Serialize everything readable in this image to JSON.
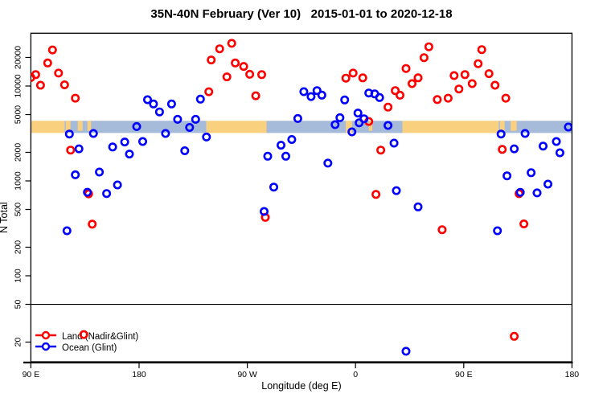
{
  "title": "35N-40N February (Ver 10)   2015-01-01 to 2020-12-18",
  "legend": {
    "items": [
      {
        "label": "Land (Nadir&Glint)",
        "series": "land",
        "color": "#ff0000"
      },
      {
        "label": "Ocean (Glint)",
        "series": "ocean",
        "color": "#0000ff"
      }
    ]
  },
  "chart_data": {
    "type": "scatter",
    "title": "35N-40N February (Ver 10)   2015-01-01 to 2020-12-18",
    "x_axis": {
      "label": "Longitude (deg E)",
      "range_deg": [
        90,
        540
      ],
      "tick_degrees": [
        90,
        180,
        270,
        360,
        450,
        540
      ],
      "tick_labels": [
        "90 E",
        "180",
        "90 W",
        "0",
        "90 E",
        "180"
      ]
    },
    "y_axis": {
      "label": "N Total",
      "scale": "log10",
      "ticks": [
        20,
        50,
        100,
        200,
        500,
        1000,
        2000,
        5000,
        10000,
        20000
      ],
      "range": [
        14,
        32000
      ]
    },
    "reference_line_value": 50,
    "surface_band": {
      "description": "land/ocean strip along latitude band",
      "land_color": "#f8d07e",
      "ocean_color": "#a6bad9",
      "value_range": [
        3200,
        4300
      ],
      "segments": [
        {
          "from_deg": 90,
          "to_deg": 118,
          "type": "land"
        },
        {
          "from_deg": 118,
          "to_deg": 236,
          "type": "ocean"
        },
        {
          "from_deg": 236,
          "to_deg": 286,
          "type": "land"
        },
        {
          "from_deg": 286,
          "to_deg": 352,
          "type": "ocean"
        },
        {
          "from_deg": 352,
          "to_deg": 357,
          "type": "land"
        },
        {
          "from_deg": 357,
          "to_deg": 399,
          "type": "ocean"
        },
        {
          "from_deg": 399,
          "to_deg": 479,
          "type": "land"
        },
        {
          "from_deg": 479,
          "to_deg": 540,
          "type": "ocean"
        }
      ],
      "land_patches_deg": [
        [
          119,
          123
        ],
        [
          129,
          133
        ],
        [
          137,
          140
        ],
        [
          371,
          374
        ],
        [
          480,
          484
        ],
        [
          489,
          494
        ]
      ]
    },
    "series": [
      {
        "name": "Land (Nadir&Glint)",
        "color": "#ff0000",
        "points_deg_n": [
          [
            108,
            24000
          ],
          [
            104,
            17500
          ],
          [
            94,
            13200
          ],
          [
            90,
            12300
          ],
          [
            113,
            13700
          ],
          [
            98,
            10200
          ],
          [
            118,
            10300
          ],
          [
            127,
            7450
          ],
          [
            123,
            2110
          ],
          [
            138,
            730
          ],
          [
            247,
            24700
          ],
          [
            257,
            28200
          ],
          [
            240,
            18800
          ],
          [
            260,
            17500
          ],
          [
            267,
            16100
          ],
          [
            272,
            13300
          ],
          [
            282,
            13200
          ],
          [
            253,
            12500
          ],
          [
            238,
            8700
          ],
          [
            277,
            7900
          ],
          [
            352,
            12100
          ],
          [
            358,
            13700
          ],
          [
            366,
            12200
          ],
          [
            371,
            4230
          ],
          [
            381,
            2110
          ],
          [
            377,
            720
          ],
          [
            387,
            6000
          ],
          [
            393,
            8950
          ],
          [
            397,
            8000
          ],
          [
            402,
            15300
          ],
          [
            407,
            10600
          ],
          [
            412,
            12200
          ],
          [
            417,
            19900
          ],
          [
            421,
            25900
          ],
          [
            428,
            7200
          ],
          [
            432,
            306
          ],
          [
            437,
            7450
          ],
          [
            442,
            12900
          ],
          [
            446,
            9300
          ],
          [
            451,
            13200
          ],
          [
            457,
            10600
          ],
          [
            462,
            17200
          ],
          [
            465,
            24200
          ],
          [
            471,
            13500
          ],
          [
            476,
            10200
          ],
          [
            482,
            2150
          ],
          [
            485,
            7450
          ],
          [
            492,
            23
          ],
          [
            496,
            735
          ],
          [
            500,
            352
          ],
          [
            141,
            350
          ],
          [
            285,
            413
          ],
          [
            134,
            24
          ]
        ]
      },
      {
        "name": "Ocean (Glint)",
        "color": "#0000ff",
        "points_deg_n": [
          [
            120,
            298
          ],
          [
            122,
            3120
          ],
          [
            127,
            1160
          ],
          [
            130,
            2180
          ],
          [
            137,
            760
          ],
          [
            142,
            3160
          ],
          [
            147,
            1240
          ],
          [
            153,
            736
          ],
          [
            158,
            2280
          ],
          [
            162,
            907
          ],
          [
            168,
            2570
          ],
          [
            172,
            1920
          ],
          [
            178,
            3740
          ],
          [
            183,
            2600
          ],
          [
            187,
            7180
          ],
          [
            192,
            6470
          ],
          [
            197,
            5330
          ],
          [
            202,
            3160
          ],
          [
            207,
            6470
          ],
          [
            212,
            4460
          ],
          [
            218,
            2080
          ],
          [
            222,
            3660
          ],
          [
            227,
            4460
          ],
          [
            231,
            7280
          ],
          [
            236,
            2900
          ],
          [
            284,
            476
          ],
          [
            287,
            1820
          ],
          [
            292,
            860
          ],
          [
            298,
            2380
          ],
          [
            302,
            1820
          ],
          [
            307,
            2730
          ],
          [
            312,
            4550
          ],
          [
            317,
            8720
          ],
          [
            323,
            7740
          ],
          [
            328,
            8950
          ],
          [
            332,
            8020
          ],
          [
            337,
            1540
          ],
          [
            343,
            3920
          ],
          [
            347,
            4640
          ],
          [
            351,
            7130
          ],
          [
            357,
            3290
          ],
          [
            362,
            5190
          ],
          [
            363,
            4100
          ],
          [
            367,
            4520
          ],
          [
            371,
            8440
          ],
          [
            376,
            8260
          ],
          [
            380,
            7560
          ],
          [
            387,
            3840
          ],
          [
            392,
            2500
          ],
          [
            394,
            790
          ],
          [
            402,
            16
          ],
          [
            412,
            532
          ],
          [
            478,
            298
          ],
          [
            481,
            3120
          ],
          [
            486,
            1130
          ],
          [
            492,
            2180
          ],
          [
            497,
            758
          ],
          [
            501,
            3160
          ],
          [
            506,
            1220
          ],
          [
            511,
            748
          ],
          [
            516,
            2330
          ],
          [
            520,
            925
          ],
          [
            527,
            2600
          ],
          [
            530,
            1980
          ],
          [
            537,
            3700
          ]
        ]
      }
    ]
  }
}
